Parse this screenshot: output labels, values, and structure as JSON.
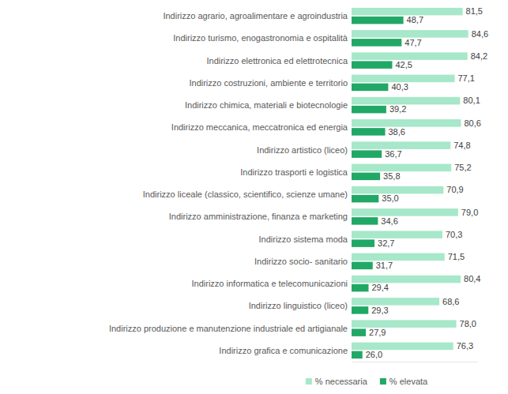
{
  "chart_data": {
    "type": "bar",
    "orientation": "horizontal",
    "data_labels": true,
    "legend": "bottom",
    "tick_labels": "y",
    "grid": false,
    "categories": [
      "Indirizzo agrario, agroalimentare e agroindustria",
      "Indirizzo turismo, enogastronomia e ospitalità",
      "Indirizzo elettronica ed elettrotecnica",
      "Indirizzo costruzioni, ambiente e territorio",
      "Indirizzo chimica, materiali e biotecnologie",
      "Indirizzo meccanica, meccatronica ed energia",
      "Indirizzo artistico (liceo)",
      "Indirizzo trasporti e logistica",
      "Indirizzo liceale (classico, scientifico, scienze umane)",
      "Indirizzo amministrazione, finanza e marketing",
      "Indirizzo sistema moda",
      "Indirizzo socio- sanitario",
      "Indirizzo informatica e telecomunicazioni",
      "Indirizzo linguistico (liceo)",
      "Indirizzo produzione e manutenzione industriale ed artigianale",
      "Indirizzo grafica e comunicazione"
    ],
    "xlim": [
      20,
      90
    ],
    "series": [
      {
        "name": "% necessaria",
        "color": "#a6e8c9",
        "values": [
          81.5,
          84.6,
          84.2,
          77.1,
          80.1,
          80.6,
          74.8,
          75.2,
          70.9,
          79.0,
          70.3,
          71.5,
          80.4,
          68.6,
          78.0,
          76.3
        ],
        "value_labels": [
          "81,5",
          "84,6",
          "84,2",
          "77,1",
          "80,1",
          "80,6",
          "74,8",
          "75,2",
          "70,9",
          "79,0",
          "70,3",
          "71,5",
          "80,4",
          "68,6",
          "78,0",
          "76,3"
        ]
      },
      {
        "name": "% elevata",
        "color": "#21a866",
        "values": [
          48.7,
          47.7,
          42.5,
          40.3,
          39.2,
          38.6,
          36.7,
          35.8,
          35.0,
          34.6,
          32.7,
          31.7,
          29.4,
          29.3,
          27.9,
          26.0
        ],
        "value_labels": [
          "48,7",
          "47,7",
          "42,5",
          "40,3",
          "39,2",
          "38,6",
          "36,7",
          "35,8",
          "35,0",
          "34,6",
          "32,7",
          "31,7",
          "29,4",
          "29,3",
          "27,9",
          "26,0"
        ]
      }
    ]
  }
}
